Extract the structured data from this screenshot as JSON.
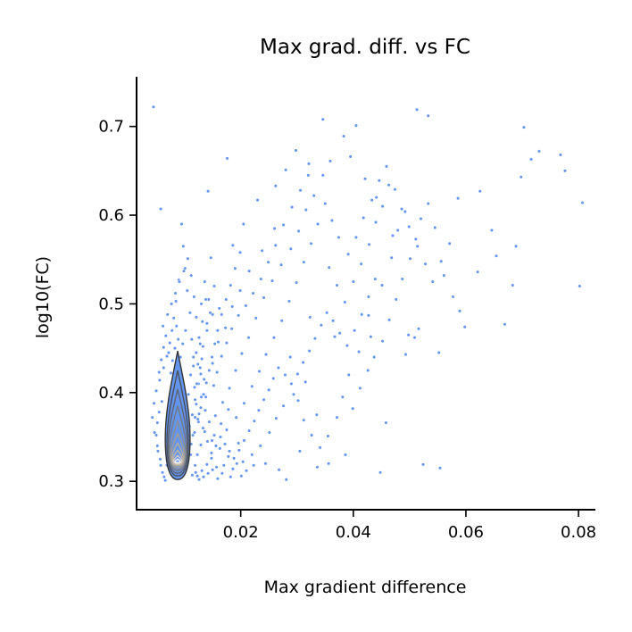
{
  "chart_data": {
    "type": "scatter",
    "title": "Max grad. diff. vs FC",
    "xlabel": "Max gradient difference",
    "ylabel": "log10(FC)",
    "xlim": [
      0.0015,
      0.083
    ],
    "ylim": [
      0.268,
      0.756
    ],
    "xticks": [
      0.02,
      0.04,
      0.06,
      0.08
    ],
    "xtick_labels": [
      "0.02",
      "0.04",
      "0.06",
      "0.08"
    ],
    "yticks": [
      0.3,
      0.4,
      0.5,
      0.6,
      0.7
    ],
    "ytick_labels": [
      "0.3",
      "0.4",
      "0.5",
      "0.6",
      "0.7"
    ],
    "grid": false,
    "legend": "none",
    "point_color": "#6495ed",
    "density_overlay": {
      "kind": "kde-contours",
      "center": [
        0.0088,
        0.322
      ],
      "fill_color": "#6495ed",
      "levels": [
        {
          "x_halfwidth": 0.0022,
          "y_low": 0.302,
          "y_high": 0.447,
          "color": "#333333"
        },
        {
          "x_halfwidth": 0.0019,
          "y_low": 0.306,
          "y_high": 0.425,
          "color": "#4a4f5c"
        },
        {
          "x_halfwidth": 0.0017,
          "y_low": 0.309,
          "y_high": 0.404,
          "color": "#5e6575"
        },
        {
          "x_halfwidth": 0.0015,
          "y_low": 0.312,
          "y_high": 0.385,
          "color": "#737a86"
        },
        {
          "x_halfwidth": 0.0013,
          "y_low": 0.314,
          "y_high": 0.368,
          "color": "#8a8f98"
        },
        {
          "x_halfwidth": 0.00115,
          "y_low": 0.316,
          "y_high": 0.354,
          "color": "#a39f98"
        },
        {
          "x_halfwidth": 0.001,
          "y_low": 0.318,
          "y_high": 0.343,
          "color": "#b9ae9c"
        },
        {
          "x_halfwidth": 0.00085,
          "y_low": 0.319,
          "y_high": 0.335,
          "color": "#c7b8a4"
        },
        {
          "x_halfwidth": 0.0007,
          "y_low": 0.32,
          "y_high": 0.329,
          "color": "#d8cfc6"
        },
        {
          "x_halfwidth": 0.00045,
          "y_low": 0.321,
          "y_high": 0.325,
          "color": "#ffffff"
        }
      ]
    },
    "points": [
      [
        0.0045,
        0.722
      ],
      [
        0.0058,
        0.607
      ],
      [
        0.0142,
        0.627
      ],
      [
        0.0176,
        0.664
      ],
      [
        0.0346,
        0.708
      ],
      [
        0.0405,
        0.701
      ],
      [
        0.0513,
        0.719
      ],
      [
        0.0533,
        0.712
      ],
      [
        0.0703,
        0.699
      ],
      [
        0.0768,
        0.668
      ],
      [
        0.0807,
        0.614
      ],
      [
        0.0802,
        0.52
      ],
      [
        0.0776,
        0.65
      ],
      [
        0.0716,
        0.663
      ],
      [
        0.073,
        0.672
      ],
      [
        0.0698,
        0.643
      ],
      [
        0.0625,
        0.627
      ],
      [
        0.0654,
        0.554
      ],
      [
        0.0689,
        0.565
      ],
      [
        0.0586,
        0.619
      ],
      [
        0.0571,
        0.568
      ],
      [
        0.0556,
        0.548
      ],
      [
        0.0589,
        0.492
      ],
      [
        0.0552,
        0.445
      ],
      [
        0.0516,
        0.472
      ],
      [
        0.0509,
        0.462
      ],
      [
        0.0524,
        0.319
      ],
      [
        0.0554,
        0.315
      ],
      [
        0.0498,
        0.465
      ],
      [
        0.0493,
        0.443
      ],
      [
        0.0458,
        0.366
      ],
      [
        0.0448,
        0.31
      ],
      [
        0.0386,
        0.33
      ],
      [
        0.0356,
        0.32
      ],
      [
        0.0336,
        0.316
      ],
      [
        0.0281,
        0.302
      ],
      [
        0.0305,
        0.334
      ],
      [
        0.0335,
        0.375
      ],
      [
        0.0302,
        0.391
      ],
      [
        0.0315,
        0.412
      ],
      [
        0.0288,
        0.44
      ],
      [
        0.0323,
        0.485
      ],
      [
        0.0367,
        0.463
      ],
      [
        0.0392,
        0.42
      ],
      [
        0.041,
        0.446
      ],
      [
        0.0431,
        0.463
      ],
      [
        0.0427,
        0.487
      ],
      [
        0.0451,
        0.521
      ],
      [
        0.0468,
        0.552
      ],
      [
        0.0479,
        0.583
      ],
      [
        0.0492,
        0.604
      ],
      [
        0.0441,
        0.62
      ],
      [
        0.0421,
        0.641
      ],
      [
        0.0395,
        0.666
      ],
      [
        0.0383,
        0.689
      ],
      [
        0.0359,
        0.661
      ],
      [
        0.0346,
        0.645
      ],
      [
        0.033,
        0.622
      ],
      [
        0.0316,
        0.606
      ],
      [
        0.0303,
        0.582
      ],
      [
        0.0289,
        0.562
      ],
      [
        0.0272,
        0.544
      ],
      [
        0.0256,
        0.526
      ],
      [
        0.0241,
        0.507
      ],
      [
        0.0227,
        0.484
      ],
      [
        0.0214,
        0.462
      ],
      [
        0.0202,
        0.444
      ],
      [
        0.0191,
        0.425
      ],
      [
        0.018,
        0.405
      ],
      [
        0.0168,
        0.389
      ],
      [
        0.0186,
        0.566
      ],
      [
        0.0205,
        0.59
      ],
      [
        0.023,
        0.617
      ],
      [
        0.0262,
        0.633
      ],
      [
        0.028,
        0.651
      ],
      [
        0.0298,
        0.673
      ],
      [
        0.0321,
        0.658
      ],
      [
        0.026,
        0.585
      ],
      [
        0.0238,
        0.56
      ],
      [
        0.0215,
        0.537
      ],
      [
        0.0199,
        0.515
      ],
      [
        0.0185,
        0.497
      ],
      [
        0.0173,
        0.473
      ],
      [
        0.016,
        0.457
      ],
      [
        0.015,
        0.433
      ],
      [
        0.0147,
        0.552
      ],
      [
        0.0153,
        0.52
      ],
      [
        0.0162,
        0.495
      ],
      [
        0.014,
        0.478
      ],
      [
        0.0133,
        0.452
      ],
      [
        0.0129,
        0.421
      ],
      [
        0.0138,
        0.395
      ],
      [
        0.0155,
        0.374
      ],
      [
        0.0175,
        0.358
      ],
      [
        0.0196,
        0.343
      ],
      [
        0.022,
        0.33
      ],
      [
        0.0244,
        0.32
      ],
      [
        0.0268,
        0.313
      ],
      [
        0.021,
        0.312
      ],
      [
        0.0193,
        0.32
      ],
      [
        0.0178,
        0.328
      ],
      [
        0.0163,
        0.337
      ],
      [
        0.0149,
        0.346
      ],
      [
        0.0136,
        0.356
      ],
      [
        0.0125,
        0.367
      ],
      [
        0.0121,
        0.387
      ],
      [
        0.0118,
        0.406
      ],
      [
        0.0116,
        0.43
      ],
      [
        0.0113,
        0.46
      ],
      [
        0.011,
        0.49
      ],
      [
        0.0105,
        0.515
      ],
      [
        0.0101,
        0.54
      ],
      [
        0.0098,
        0.565
      ],
      [
        0.0095,
        0.59
      ],
      [
        0.009,
        0.527
      ],
      [
        0.0085,
        0.503
      ],
      [
        0.0081,
        0.484
      ],
      [
        0.0078,
        0.47
      ],
      [
        0.0074,
        0.456
      ],
      [
        0.0069,
        0.441
      ],
      [
        0.0063,
        0.428
      ],
      [
        0.0056,
        0.414
      ],
      [
        0.005,
        0.402
      ],
      [
        0.0046,
        0.388
      ],
      [
        0.0043,
        0.372
      ],
      [
        0.0047,
        0.355
      ],
      [
        0.0052,
        0.34
      ],
      [
        0.0057,
        0.325
      ],
      [
        0.0061,
        0.31
      ],
      [
        0.0066,
        0.301
      ],
      [
        0.0123,
        0.306
      ],
      [
        0.0131,
        0.312
      ],
      [
        0.014,
        0.319
      ],
      [
        0.0148,
        0.326
      ],
      [
        0.0157,
        0.316
      ],
      [
        0.0167,
        0.309
      ],
      [
        0.0182,
        0.305
      ],
      [
        0.0201,
        0.306
      ],
      [
        0.0223,
        0.318
      ],
      [
        0.0235,
        0.34
      ],
      [
        0.0251,
        0.355
      ],
      [
        0.0263,
        0.371
      ],
      [
        0.0276,
        0.385
      ],
      [
        0.0294,
        0.398
      ],
      [
        0.0312,
        0.369
      ],
      [
        0.0326,
        0.352
      ],
      [
        0.0341,
        0.338
      ],
      [
        0.0355,
        0.351
      ],
      [
        0.0371,
        0.372
      ],
      [
        0.0381,
        0.395
      ],
      [
        0.0399,
        0.382
      ],
      [
        0.0412,
        0.405
      ],
      [
        0.0426,
        0.425
      ],
      [
        0.0437,
        0.44
      ],
      [
        0.0452,
        0.458
      ],
      [
        0.0464,
        0.482
      ],
      [
        0.0476,
        0.505
      ],
      [
        0.0487,
        0.528
      ],
      [
        0.0501,
        0.551
      ],
      [
        0.0511,
        0.573
      ],
      [
        0.052,
        0.596
      ],
      [
        0.0533,
        0.613
      ],
      [
        0.0545,
        0.586
      ],
      [
        0.0561,
        0.532
      ],
      [
        0.0577,
        0.508
      ],
      [
        0.0598,
        0.474
      ],
      [
        0.0621,
        0.536
      ],
      [
        0.0646,
        0.583
      ],
      [
        0.0669,
        0.477
      ],
      [
        0.0683,
        0.521
      ],
      [
        0.0357,
        0.541
      ],
      [
        0.0371,
        0.521
      ],
      [
        0.0385,
        0.502
      ],
      [
        0.04,
        0.525
      ],
      [
        0.0414,
        0.545
      ],
      [
        0.0428,
        0.567
      ],
      [
        0.044,
        0.592
      ],
      [
        0.0452,
        0.61
      ],
      [
        0.0463,
        0.634
      ],
      [
        0.047,
        0.577
      ],
      [
        0.0337,
        0.59
      ],
      [
        0.0325,
        0.568
      ],
      [
        0.0312,
        0.547
      ],
      [
        0.0299,
        0.524
      ],
      [
        0.0286,
        0.503
      ],
      [
        0.0273,
        0.481
      ],
      [
        0.0259,
        0.462
      ],
      [
        0.0245,
        0.443
      ],
      [
        0.0233,
        0.424
      ],
      [
        0.022,
        0.407
      ],
      [
        0.0206,
        0.388
      ],
      [
        0.0192,
        0.372
      ],
      [
        0.0178,
        0.381
      ],
      [
        0.0165,
        0.365
      ],
      [
        0.0153,
        0.352
      ],
      [
        0.0144,
        0.367
      ],
      [
        0.0137,
        0.38
      ],
      [
        0.0129,
        0.341
      ],
      [
        0.0123,
        0.33
      ],
      [
        0.0119,
        0.318
      ],
      [
        0.0152,
        0.408
      ],
      [
        0.0158,
        0.423
      ],
      [
        0.0166,
        0.441
      ],
      [
        0.0175,
        0.456
      ],
      [
        0.0184,
        0.472
      ],
      [
        0.0196,
        0.487
      ],
      [
        0.0209,
        0.498
      ],
      [
        0.0222,
        0.512
      ],
      [
        0.0236,
        0.528
      ],
      [
        0.0249,
        0.547
      ],
      [
        0.0262,
        0.566
      ],
      [
        0.0276,
        0.589
      ],
      [
        0.0291,
        0.609
      ],
      [
        0.0306,
        0.628
      ],
      [
        0.032,
        0.645
      ],
      [
        0.035,
        0.613
      ],
      [
        0.0362,
        0.594
      ],
      [
        0.0374,
        0.575
      ],
      [
        0.0391,
        0.556
      ],
      [
        0.0405,
        0.575
      ],
      [
        0.0418,
        0.597
      ],
      [
        0.0433,
        0.617
      ],
      [
        0.0446,
        0.639
      ],
      [
        0.0459,
        0.655
      ],
      [
        0.0474,
        0.629
      ],
      [
        0.0486,
        0.607
      ],
      [
        0.0499,
        0.587
      ],
      [
        0.0514,
        0.565
      ],
      [
        0.0528,
        0.545
      ],
      [
        0.0541,
        0.525
      ],
      [
        0.0102,
        0.47
      ],
      [
        0.0097,
        0.455
      ],
      [
        0.0093,
        0.44
      ],
      [
        0.0089,
        0.46
      ],
      [
        0.0086,
        0.475
      ],
      [
        0.0083,
        0.45
      ],
      [
        0.0079,
        0.436
      ],
      [
        0.0076,
        0.422
      ],
      [
        0.0072,
        0.445
      ],
      [
        0.0067,
        0.464
      ],
      [
        0.0063,
        0.451
      ],
      [
        0.0059,
        0.437
      ],
      [
        0.0055,
        0.423
      ],
      [
        0.0062,
        0.475
      ],
      [
        0.007,
        0.488
      ],
      [
        0.0077,
        0.5
      ],
      [
        0.0084,
        0.512
      ],
      [
        0.0091,
        0.525
      ],
      [
        0.0099,
        0.537
      ],
      [
        0.0106,
        0.551
      ],
      [
        0.0112,
        0.532
      ],
      [
        0.0117,
        0.508
      ],
      [
        0.0121,
        0.485
      ],
      [
        0.0126,
        0.462
      ],
      [
        0.0131,
        0.438
      ],
      [
        0.0135,
        0.415
      ],
      [
        0.013,
        0.395
      ],
      [
        0.0126,
        0.376
      ],
      [
        0.0133,
        0.36
      ],
      [
        0.0141,
        0.345
      ],
      [
        0.0148,
        0.332
      ],
      [
        0.0156,
        0.34
      ],
      [
        0.0164,
        0.35
      ],
      [
        0.0172,
        0.342
      ],
      [
        0.018,
        0.334
      ],
      [
        0.0188,
        0.326
      ],
      [
        0.0197,
        0.335
      ],
      [
        0.0206,
        0.346
      ],
      [
        0.0215,
        0.357
      ],
      [
        0.0224,
        0.368
      ],
      [
        0.0232,
        0.38
      ],
      [
        0.0241,
        0.392
      ],
      [
        0.025,
        0.403
      ],
      [
        0.0258,
        0.416
      ],
      [
        0.0267,
        0.428
      ],
      [
        0.0279,
        0.42
      ],
      [
        0.029,
        0.41
      ],
      [
        0.0301,
        0.421
      ],
      [
        0.0311,
        0.434
      ],
      [
        0.0322,
        0.447
      ],
      [
        0.0332,
        0.461
      ],
      [
        0.0343,
        0.476
      ],
      [
        0.0353,
        0.49
      ],
      [
        0.0364,
        0.481
      ],
      [
        0.0376,
        0.467
      ],
      [
        0.0389,
        0.453
      ],
      [
        0.0402,
        0.47
      ],
      [
        0.0415,
        0.488
      ],
      [
        0.0427,
        0.508
      ],
      [
        0.0439,
        0.528
      ],
      [
        0.013,
        0.5
      ],
      [
        0.0136,
        0.525
      ],
      [
        0.0143,
        0.505
      ],
      [
        0.015,
        0.488
      ],
      [
        0.0158,
        0.47
      ],
      [
        0.0166,
        0.488
      ],
      [
        0.0174,
        0.505
      ],
      [
        0.0182,
        0.521
      ],
      [
        0.019,
        0.54
      ],
      [
        0.0199,
        0.558
      ],
      [
        0.0112,
        0.342
      ],
      [
        0.0118,
        0.355
      ],
      [
        0.0124,
        0.37
      ],
      [
        0.0129,
        0.383
      ],
      [
        0.0134,
        0.398
      ],
      [
        0.0139,
        0.411
      ],
      [
        0.0144,
        0.425
      ],
      [
        0.0149,
        0.44
      ],
      [
        0.0154,
        0.455
      ],
      [
        0.0159,
        0.47
      ],
      [
        0.0114,
        0.307
      ],
      [
        0.012,
        0.31
      ],
      [
        0.0126,
        0.302
      ],
      [
        0.0134,
        0.305
      ],
      [
        0.0142,
        0.309
      ],
      [
        0.015,
        0.313
      ],
      [
        0.0159,
        0.303
      ],
      [
        0.017,
        0.318
      ],
      [
        0.0186,
        0.314
      ],
      [
        0.0204,
        0.322
      ],
      [
        0.0121,
        0.445
      ],
      [
        0.0116,
        0.44
      ],
      [
        0.0111,
        0.42
      ],
      [
        0.0107,
        0.398
      ],
      [
        0.0104,
        0.378
      ],
      [
        0.0109,
        0.362
      ],
      [
        0.0114,
        0.375
      ],
      [
        0.0119,
        0.392
      ],
      [
        0.0125,
        0.41
      ],
      [
        0.0128,
        0.428
      ],
      [
        0.006,
        0.39
      ],
      [
        0.0055,
        0.378
      ],
      [
        0.0052,
        0.366
      ],
      [
        0.005,
        0.352
      ],
      [
        0.0053,
        0.334
      ],
      [
        0.0058,
        0.318
      ],
      [
        0.0064,
        0.305
      ],
      [
        0.0069,
        0.318
      ],
      [
        0.0073,
        0.332
      ],
      [
        0.0076,
        0.346
      ],
      [
        0.014,
        0.47
      ],
      [
        0.0146,
        0.49
      ],
      [
        0.0138,
        0.505
      ],
      [
        0.0132,
        0.48
      ],
      [
        0.0128,
        0.455
      ],
      [
        0.0124,
        0.432
      ],
      [
        0.0122,
        0.41
      ],
      [
        0.0119,
        0.372
      ],
      [
        0.0115,
        0.352
      ],
      [
        0.0111,
        0.33
      ]
    ]
  }
}
